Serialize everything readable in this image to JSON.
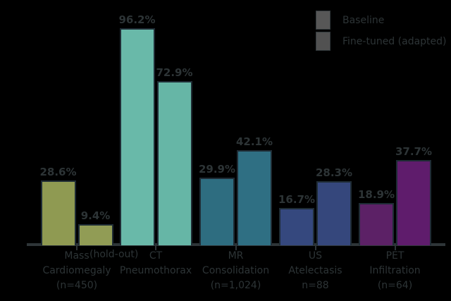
{
  "colors": {
    "background": "#000000",
    "text": "#2d3436",
    "axis": "#2e3538",
    "bar_outline": "#1f2c35",
    "legend_swatch_1": "#575757",
    "legend_swatch_2": "#515151"
  },
  "legend": {
    "items": [
      {
        "label": "Baseline",
        "swatch_color": "#575757"
      },
      {
        "label": "Fine-tuned (adapted)",
        "swatch_color": "#515151"
      }
    ]
  },
  "axis_annotation": "(hold-out)",
  "chart_data": {
    "type": "bar",
    "title": "",
    "xlabel": "",
    "ylabel": "",
    "ylim": [
      0,
      100
    ],
    "grid": false,
    "legend_position": "upper right",
    "categories": [
      {
        "lines": [
          "Mass",
          "Cardiomegaly",
          "(n=450)"
        ]
      },
      {
        "lines": [
          "CT",
          "Pneumothorax"
        ]
      },
      {
        "lines": [
          "MR",
          "Consolidation",
          "(n=1,024)"
        ]
      },
      {
        "lines": [
          "US",
          "Atelectasis",
          "n=88"
        ]
      },
      {
        "lines": [
          "PET",
          "Infiltration",
          "(n=64)"
        ]
      }
    ],
    "series": [
      {
        "name": "Baseline",
        "values": [
          28.6,
          96.2,
          29.9,
          16.7,
          18.9
        ],
        "labels": [
          "28.6%",
          "96.2%",
          "29.9%",
          "16.7%",
          "18.9%"
        ],
        "colors": [
          "#8F9A52",
          "#69B9A9",
          "#2E6D80",
          "#35487E",
          "#5C2166"
        ]
      },
      {
        "name": "Fine-tuned (adapted)",
        "values": [
          9.4,
          72.9,
          42.1,
          28.3,
          37.7
        ],
        "labels": [
          "9.4%",
          "72.9%",
          "42.1%",
          "28.3%",
          "37.7%"
        ],
        "colors": [
          "#919C55",
          "#66B6A6",
          "#2F6F83",
          "#35477C",
          "#5F1C6C"
        ]
      }
    ]
  }
}
